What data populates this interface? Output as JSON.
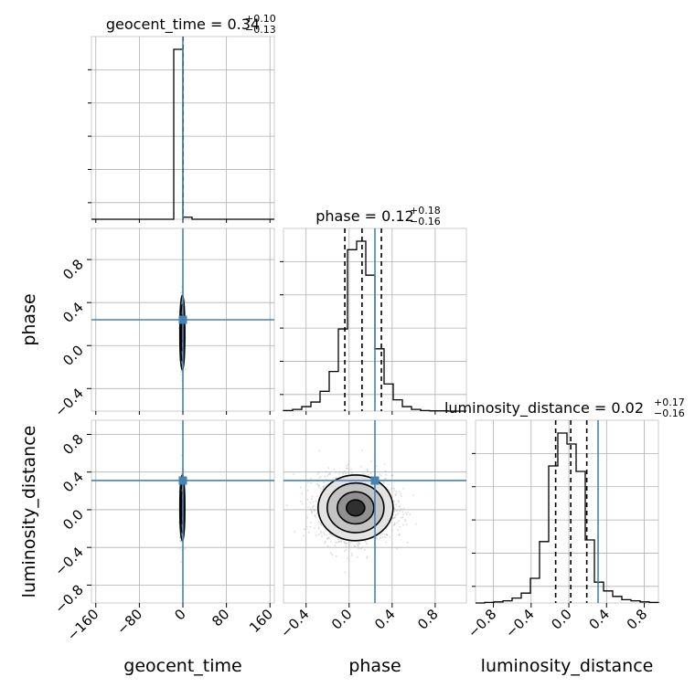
{
  "chart_data": {
    "type": "corner",
    "parameters": [
      "geocent_time",
      "phase",
      "luminosity_distance"
    ],
    "truths": {
      "geocent_time": 0.0,
      "phase": 0.24,
      "luminosity_distance": 0.31
    },
    "colors": {
      "truth": "#4682b4",
      "hist": "#000000",
      "grid": "#b0b0b0",
      "samples": "#999999"
    },
    "grid": true,
    "titles": [
      {
        "name": "geocent_time = 0.34",
        "sup": "+0.10",
        "sub": "−0.13"
      },
      {
        "name": "phase = 0.12",
        "sup": "+0.18",
        "sub": "−0.16"
      },
      {
        "name": "luminosity_distance = 0.02",
        "sup": "+0.17",
        "sub": "−0.16"
      }
    ],
    "axis_labels": {
      "x": [
        "geocent_time",
        "phase",
        "luminosity_distance"
      ],
      "y": [
        "phase",
        "luminosity_distance"
      ]
    },
    "ranges": {
      "geocent_time": [
        -168,
        168
      ],
      "phase": [
        -0.61,
        1.09
      ],
      "luminosity_distance": [
        -0.99,
        0.95
      ]
    },
    "ticks": {
      "geocent_time": [
        "−160",
        "−80",
        "0",
        "80",
        "160"
      ],
      "geocent_time_values": [
        -160,
        -80,
        0,
        80,
        160
      ],
      "phase": [
        "−0.4",
        "0.0",
        "0.4",
        "0.8"
      ],
      "phase_values": [
        -0.4,
        0.0,
        0.4,
        0.8
      ],
      "luminosity_distance": [
        "−0.8",
        "−0.4",
        "0.0",
        "0.4",
        "0.8"
      ],
      "luminosity_distance_values": [
        -0.8,
        -0.4,
        0.0,
        0.4,
        0.8
      ]
    },
    "quantile_lines": {
      "geocent_time": [
        0.34
      ],
      "phase": [
        -0.04,
        0.12,
        0.3
      ],
      "luminosity_distance": [
        -0.14,
        0.02,
        0.19
      ]
    },
    "histograms": {
      "phase": {
        "edges": [
          -0.61,
          -0.525,
          -0.44,
          -0.355,
          -0.27,
          -0.185,
          -0.1,
          -0.015,
          0.07,
          0.155,
          0.24,
          0.325,
          0.41,
          0.495,
          0.58,
          0.665,
          0.75,
          0.835,
          0.92,
          1.005,
          1.09
        ],
        "counts": [
          1,
          3,
          8,
          16,
          35,
          70,
          145,
          285,
          300,
          240,
          110,
          48,
          20,
          8,
          3,
          1,
          0.5,
          0.5,
          0,
          0
        ]
      },
      "luminosity_distance": {
        "edges": [
          -0.99,
          -0.893,
          -0.796,
          -0.699,
          -0.602,
          -0.505,
          -0.408,
          -0.311,
          -0.214,
          -0.117,
          -0.02,
          0.077,
          0.174,
          0.271,
          0.368,
          0.465,
          0.562,
          0.659,
          0.756,
          0.853,
          0.95
        ],
        "counts": [
          0,
          1,
          2,
          4,
          9,
          18,
          45,
          112,
          250,
          310,
          290,
          240,
          115,
          38,
          22,
          12,
          6,
          4,
          2,
          1
        ]
      },
      "geocent_time": {
        "edges": [
          -168,
          -151.2,
          -134.4,
          -117.6,
          -100.8,
          -84,
          -67.2,
          -50.4,
          -33.6,
          -16.8,
          0,
          16.8,
          33.6,
          50.4,
          67.2,
          84,
          100.8,
          117.6,
          134.4,
          151.2,
          168
        ],
        "counts": [
          0,
          0,
          0,
          0,
          0,
          0,
          0,
          0,
          0,
          1000,
          12,
          0,
          0,
          0,
          0,
          0,
          0,
          0,
          0,
          0
        ]
      }
    }
  }
}
